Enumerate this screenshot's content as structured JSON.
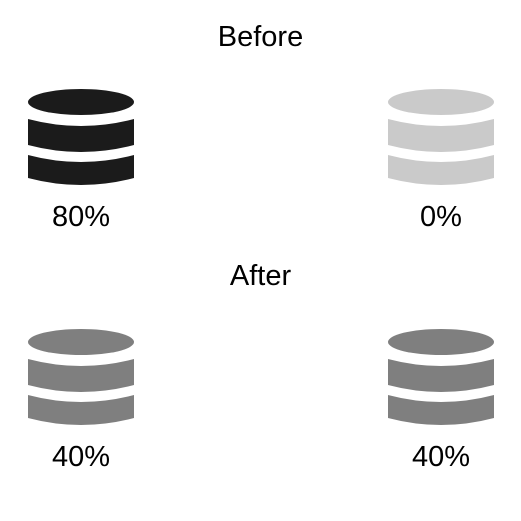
{
  "before": {
    "title": "Before",
    "left": {
      "label": "80%",
      "color": "#1b1b1b"
    },
    "right": {
      "label": "0%",
      "color": "#cacaca"
    }
  },
  "after": {
    "title": "After",
    "left": {
      "label": "40%",
      "color": "#7f7f7f"
    },
    "right": {
      "label": "40%",
      "color": "#7f7f7f"
    }
  },
  "icons": {
    "database": "database-icon"
  }
}
